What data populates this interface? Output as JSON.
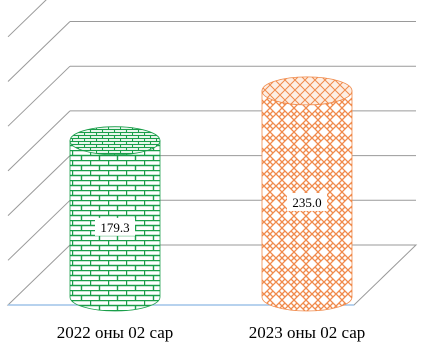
{
  "chart_data": {
    "type": "bar",
    "style": "3d-cylinder",
    "categories": [
      "2022 оны 02 сар",
      "2023 оны 02 сар"
    ],
    "series": [
      {
        "values": [
          179.3,
          235.0
        ]
      }
    ],
    "data_labels": [
      "179.3",
      "235.0"
    ],
    "ylim": [
      0,
      300
    ],
    "grid": true,
    "legend": "none",
    "bar_patterns": [
      "brick",
      "herringbone"
    ],
    "colors": {
      "bar_1": "#1a9e4a",
      "bar_2": "#f08a4b",
      "grid": "#9a9a9a",
      "baseline": "#9fc3e8"
    }
  }
}
